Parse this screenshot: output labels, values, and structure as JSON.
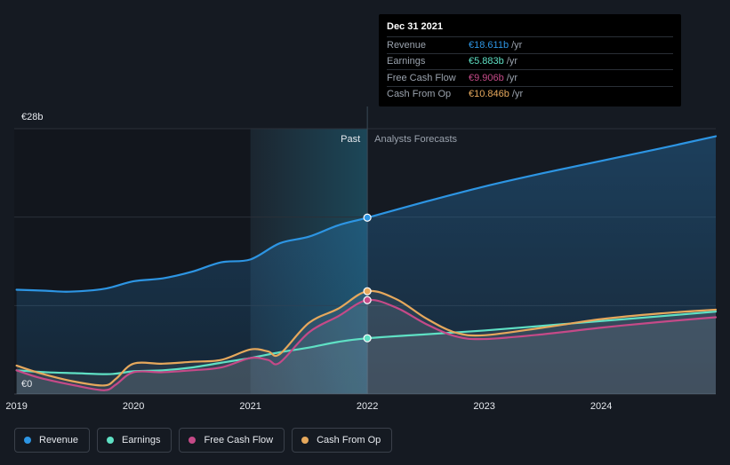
{
  "chart_data": {
    "type": "line",
    "title": "",
    "xlabel": "",
    "ylabel": "",
    "y_axis_labels": [
      "€28b",
      "€0"
    ],
    "ylim": [
      0,
      28
    ],
    "xlim": [
      2018.98,
      2024.98
    ],
    "x_ticks": [
      2019,
      2020,
      2021,
      2022,
      2023,
      2024
    ],
    "x_tick_labels": [
      "2019",
      "2020",
      "2021",
      "2022",
      "2023",
      "2024"
    ],
    "past_label": "Past",
    "forecast_label": "Analysts Forecasts",
    "split_x": 2022.0,
    "highlight_start_x": 2021.0,
    "series": [
      {
        "name": "Revenue",
        "color": "#2d95e3",
        "x": [
          2019.0,
          2019.25,
          2019.45,
          2019.75,
          2020.0,
          2020.25,
          2020.5,
          2020.75,
          2021.0,
          2021.25,
          2021.5,
          2021.75,
          2022.0,
          2022.5,
          2023.0,
          2023.5,
          2024.0,
          2024.5,
          2024.98
        ],
        "y": [
          11.0,
          10.9,
          10.8,
          11.1,
          11.9,
          12.2,
          12.9,
          13.9,
          14.2,
          15.9,
          16.6,
          17.8,
          18.611,
          20.3,
          21.9,
          23.3,
          24.6,
          25.9,
          27.2
        ]
      },
      {
        "name": "Earnings",
        "color": "#5fe0c4",
        "x": [
          2019.0,
          2019.25,
          2019.5,
          2019.8,
          2020.0,
          2020.25,
          2020.5,
          2020.75,
          2021.0,
          2021.25,
          2021.5,
          2021.75,
          2022.0,
          2022.5,
          2023.0,
          2023.5,
          2024.0,
          2024.5,
          2024.98
        ],
        "y": [
          2.5,
          2.3,
          2.2,
          2.1,
          2.4,
          2.5,
          2.8,
          3.3,
          3.8,
          4.4,
          4.9,
          5.5,
          5.883,
          6.3,
          6.7,
          7.2,
          7.7,
          8.2,
          8.7
        ]
      },
      {
        "name": "Free Cash Flow",
        "color": "#c54a88",
        "x": [
          2019.0,
          2019.2,
          2019.5,
          2019.75,
          2019.85,
          2020.0,
          2020.25,
          2020.5,
          2020.75,
          2021.0,
          2021.15,
          2021.25,
          2021.5,
          2021.75,
          2022.0,
          2022.25,
          2022.5,
          2022.75,
          2023.0,
          2023.5,
          2024.0,
          2024.5,
          2024.98
        ],
        "y": [
          2.5,
          1.7,
          0.9,
          0.4,
          1.0,
          2.3,
          2.3,
          2.5,
          2.8,
          3.8,
          3.6,
          3.3,
          6.5,
          8.2,
          9.906,
          9.1,
          7.4,
          6.1,
          5.8,
          6.3,
          7.0,
          7.6,
          8.1
        ]
      },
      {
        "name": "Cash From Op",
        "color": "#e6a85c",
        "x": [
          2019.0,
          2019.2,
          2019.5,
          2019.75,
          2019.85,
          2020.0,
          2020.25,
          2020.5,
          2020.75,
          2021.0,
          2021.15,
          2021.25,
          2021.5,
          2021.75,
          2022.0,
          2022.25,
          2022.5,
          2022.75,
          2023.0,
          2023.5,
          2024.0,
          2024.5,
          2024.98
        ],
        "y": [
          3.0,
          2.2,
          1.3,
          0.9,
          1.6,
          3.2,
          3.2,
          3.4,
          3.6,
          4.7,
          4.5,
          4.2,
          7.5,
          9.0,
          10.846,
          10.0,
          8.0,
          6.5,
          6.2,
          7.0,
          7.9,
          8.5,
          8.9
        ]
      }
    ]
  },
  "tooltip": {
    "date": "Dec 31 2021",
    "rows": [
      {
        "name": "Revenue",
        "value": "€18.611b",
        "unit": "/yr",
        "color": "#2d95e3"
      },
      {
        "name": "Earnings",
        "value": "€5.883b",
        "unit": "/yr",
        "color": "#5fe0c4"
      },
      {
        "name": "Free Cash Flow",
        "value": "€9.906b",
        "unit": "/yr",
        "color": "#c54a88"
      },
      {
        "name": "Cash From Op",
        "value": "€10.846b",
        "unit": "/yr",
        "color": "#e6a85c"
      }
    ]
  },
  "legend": [
    {
      "label": "Revenue",
      "color": "#2d95e3"
    },
    {
      "label": "Earnings",
      "color": "#5fe0c4"
    },
    {
      "label": "Free Cash Flow",
      "color": "#c54a88"
    },
    {
      "label": "Cash From Op",
      "color": "#e6a85c"
    }
  ]
}
